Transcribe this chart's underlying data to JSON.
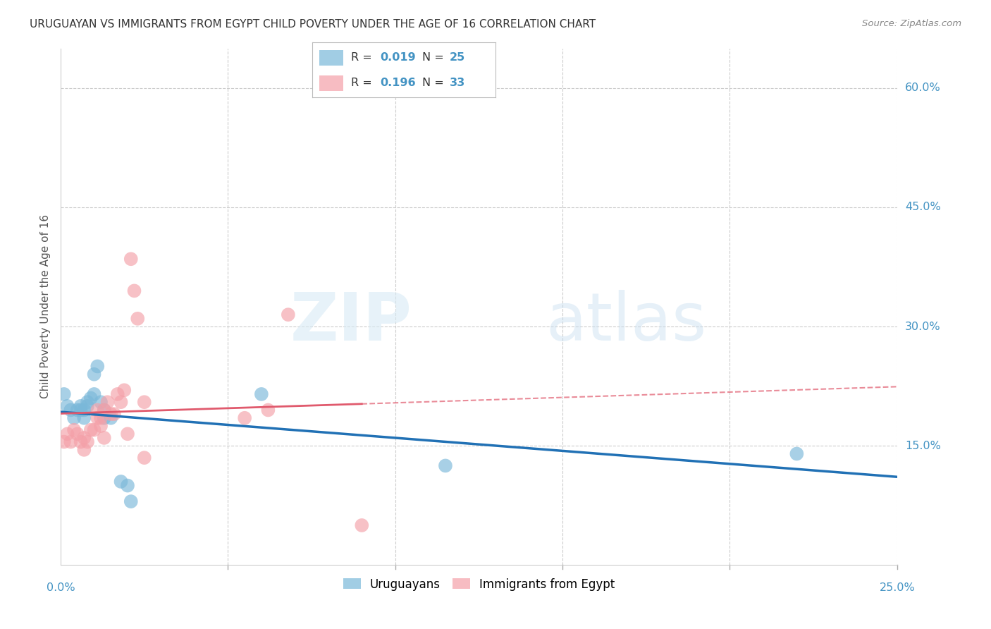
{
  "title": "URUGUAYAN VS IMMIGRANTS FROM EGYPT CHILD POVERTY UNDER THE AGE OF 16 CORRELATION CHART",
  "source": "Source: ZipAtlas.com",
  "ylabel": "Child Poverty Under the Age of 16",
  "xlim": [
    0.0,
    0.25
  ],
  "ylim": [
    0.0,
    0.65
  ],
  "yticks": [
    0.15,
    0.3,
    0.45,
    0.6
  ],
  "ytick_labels": [
    "15.0%",
    "30.0%",
    "45.0%",
    "60.0%"
  ],
  "xticks": [
    0.0,
    0.05,
    0.1,
    0.15,
    0.2,
    0.25
  ],
  "uruguayan_x": [
    0.001,
    0.002,
    0.003,
    0.004,
    0.005,
    0.006,
    0.006,
    0.007,
    0.007,
    0.008,
    0.008,
    0.009,
    0.01,
    0.01,
    0.011,
    0.012,
    0.013,
    0.013,
    0.015,
    0.018,
    0.02,
    0.021,
    0.06,
    0.115,
    0.22
  ],
  "uruguayan_y": [
    0.215,
    0.2,
    0.195,
    0.185,
    0.195,
    0.2,
    0.195,
    0.185,
    0.195,
    0.2,
    0.205,
    0.21,
    0.215,
    0.24,
    0.25,
    0.205,
    0.195,
    0.185,
    0.185,
    0.105,
    0.1,
    0.08,
    0.215,
    0.125,
    0.14
  ],
  "egypt_x": [
    0.001,
    0.002,
    0.003,
    0.004,
    0.005,
    0.006,
    0.007,
    0.007,
    0.008,
    0.009,
    0.01,
    0.011,
    0.011,
    0.012,
    0.012,
    0.013,
    0.013,
    0.014,
    0.015,
    0.016,
    0.017,
    0.018,
    0.019,
    0.02,
    0.021,
    0.022,
    0.023,
    0.025,
    0.025,
    0.055,
    0.062,
    0.068,
    0.09
  ],
  "egypt_y": [
    0.155,
    0.165,
    0.155,
    0.17,
    0.165,
    0.155,
    0.145,
    0.16,
    0.155,
    0.17,
    0.17,
    0.195,
    0.185,
    0.185,
    0.175,
    0.16,
    0.195,
    0.205,
    0.19,
    0.19,
    0.215,
    0.205,
    0.22,
    0.165,
    0.385,
    0.345,
    0.31,
    0.205,
    0.135,
    0.185,
    0.195,
    0.315,
    0.05
  ],
  "uruguayan_color": "#7ab8d9",
  "egypt_color": "#f4a0a8",
  "trend_uruguayan_color": "#2171b5",
  "trend_egypt_solid_color": "#e05a6d",
  "trend_egypt_dash_color": "#e05a6d",
  "R_uruguayan": 0.019,
  "N_uruguayan": 25,
  "R_egypt": 0.196,
  "N_egypt": 33,
  "background_color": "#ffffff",
  "grid_color": "#cccccc",
  "title_fontsize": 11,
  "axis_label_fontsize": 11,
  "tick_label_color": "#4393c3",
  "watermark_zip": "ZIP",
  "watermark_atlas": "atlas",
  "legend_label_color": "#4393c3"
}
